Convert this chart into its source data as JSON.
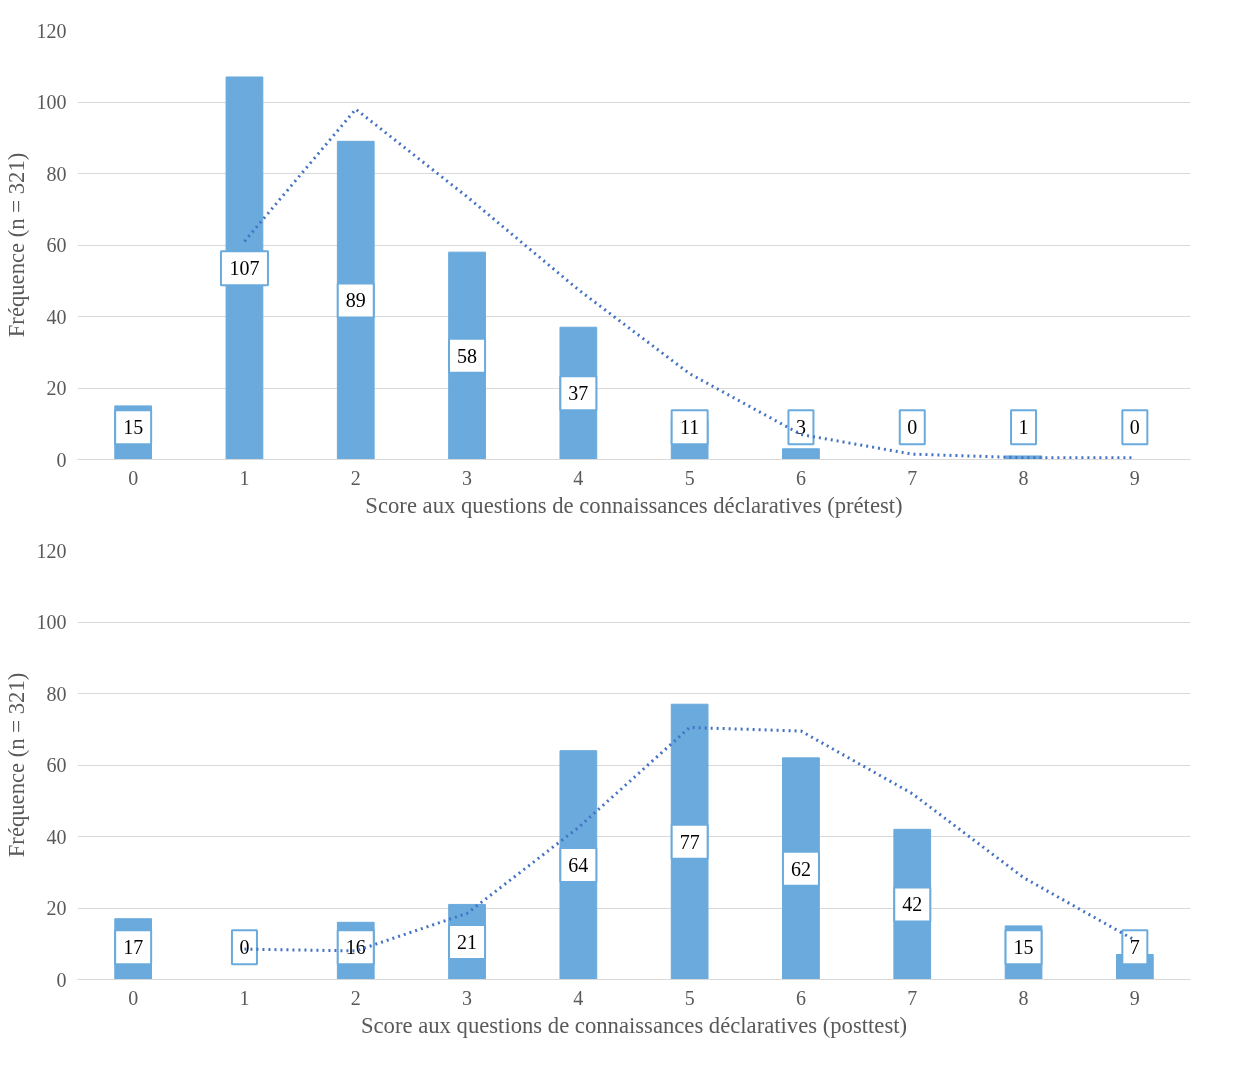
{
  "chart_data": [
    {
      "type": "bar",
      "categories": [
        "0",
        "1",
        "2",
        "3",
        "4",
        "5",
        "6",
        "7",
        "8",
        "9"
      ],
      "xlabel": "Score aux questions de connaissances déclaratives (prétest)",
      "ylabel": "Fréquence (n = 321)",
      "ylim": [
        0,
        120
      ],
      "yticks": [
        0,
        20,
        40,
        60,
        80,
        100,
        120
      ],
      "grid": "y",
      "series": [
        {
          "color": "#6aaadc",
          "values": [
            15,
            107,
            89,
            58,
            37,
            11,
            3,
            0,
            1,
            0
          ],
          "value_labels": [
            "15",
            "107",
            "89",
            "58",
            "37",
            "11",
            "3",
            "0",
            "1",
            "0"
          ]
        },
        {
          "type": "line",
          "color": "#4472c4",
          "line_style": "dotted",
          "values": [
            null,
            61,
            98,
            73.5,
            47.5,
            24,
            7,
            1.5,
            0.5,
            0.5
          ]
        }
      ]
    },
    {
      "type": "bar",
      "categories": [
        "0",
        "1",
        "2",
        "3",
        "4",
        "5",
        "6",
        "7",
        "8",
        "9"
      ],
      "xlabel": "Score aux questions de connaissances déclaratives (posttest)",
      "ylabel": "Fréquence (n = 321)",
      "ylim": [
        0,
        120
      ],
      "yticks": [
        0,
        20,
        40,
        60,
        80,
        100,
        120
      ],
      "grid": "y",
      "series": [
        {
          "color": "#6aaadc",
          "values": [
            17,
            0,
            16,
            21,
            64,
            77,
            62,
            42,
            15,
            7
          ],
          "value_labels": [
            "17",
            "0",
            "16",
            "21",
            "64",
            "77",
            "62",
            "42",
            "15",
            "7"
          ]
        },
        {
          "type": "line",
          "color": "#4472c4",
          "line_style": "dotted",
          "values": [
            null,
            8.5,
            8,
            18.5,
            42.5,
            70.5,
            69.5,
            52,
            28.5,
            11
          ]
        }
      ]
    }
  ]
}
